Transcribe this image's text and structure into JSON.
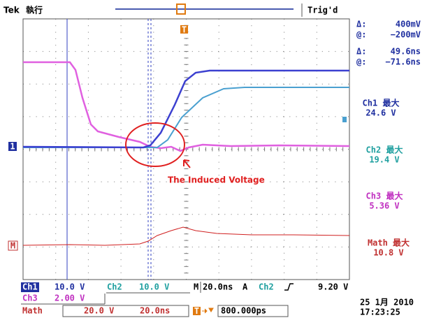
{
  "header": {
    "brand": "Tek",
    "mode": "執行",
    "trigger_status": "Trig'd",
    "trigger_marker": "T"
  },
  "cursors": [
    {
      "label": "Δ:",
      "value": "400mV"
    },
    {
      "label": "@:",
      "value": "−200mV"
    },
    {
      "label": "Δ:",
      "value": "49.6ns"
    },
    {
      "label": "@:",
      "value": "−71.6ns"
    }
  ],
  "measurements": [
    {
      "name": "Ch1 最大",
      "value": "24.6 V"
    },
    {
      "name": "Ch2 最大",
      "value": "19.4 V"
    },
    {
      "name": "Ch3 最大",
      "value": "5.36 V"
    },
    {
      "name": "Math 最大",
      "value": "10.8 V"
    }
  ],
  "markers": {
    "ch1": "1",
    "math": "M"
  },
  "annotation": "The Induced Voltage",
  "status": {
    "ch1": {
      "name": "Ch1",
      "scale": "10.0 V"
    },
    "ch2": {
      "name": "Ch2",
      "scale": "10.0 V"
    },
    "timebase": {
      "label": "M",
      "value": "20.0ns"
    },
    "trigger": {
      "label": "A",
      "source": "Ch2",
      "level": "9.20 V"
    },
    "ch3": {
      "name": "Ch3",
      "scale": "2.00 V"
    },
    "math": {
      "name": "Math",
      "scale": "20.0 V",
      "time": "20.0ns"
    },
    "position": "800.000ps",
    "date": "25 1月 2010",
    "time": "17:23:25"
  }
}
